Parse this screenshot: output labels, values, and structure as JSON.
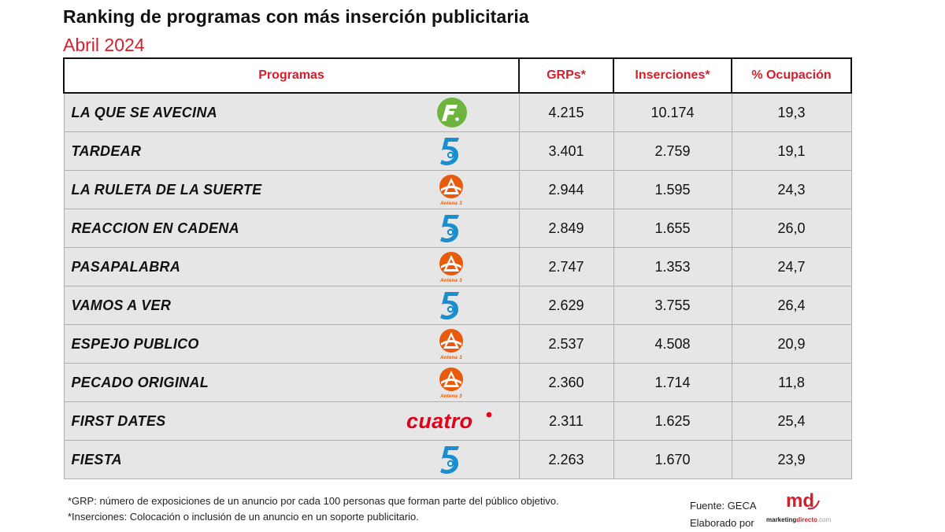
{
  "title": "Ranking de programas con más inserción publicitaria",
  "subtitle": "Abril 2024",
  "columns": [
    "Programas",
    "GRPs*",
    "Inserciones*",
    "% Ocupación"
  ],
  "rows": [
    {
      "program": "LA QUE SE AVECINA",
      "channel": "factoria-de-ficcion-logo",
      "grps": "4.215",
      "inserciones": "10.174",
      "ocupacion": "19,3"
    },
    {
      "program": "TARDEAR",
      "channel": "telecinco-logo",
      "grps": "3.401",
      "inserciones": "2.759",
      "ocupacion": "19,1"
    },
    {
      "program": "LA RULETA DE LA SUERTE",
      "channel": "antena3-logo",
      "grps": "2.944",
      "inserciones": "1.595",
      "ocupacion": "24,3"
    },
    {
      "program": "REACCION EN CADENA",
      "channel": "telecinco-logo",
      "grps": "2.849",
      "inserciones": "1.655",
      "ocupacion": "26,0"
    },
    {
      "program": "PASAPALABRA",
      "channel": "antena3-logo",
      "grps": "2.747",
      "inserciones": "1.353",
      "ocupacion": "24,7"
    },
    {
      "program": "VAMOS A VER",
      "channel": "telecinco-logo",
      "grps": "2.629",
      "inserciones": "3.755",
      "ocupacion": "26,4"
    },
    {
      "program": "ESPEJO PUBLICO",
      "channel": "antena3-logo",
      "grps": "2.537",
      "inserciones": "4.508",
      "ocupacion": "20,9"
    },
    {
      "program": "PECADO ORIGINAL",
      "channel": "antena3-logo",
      "grps": "2.360",
      "inserciones": "1.714",
      "ocupacion": "11,8"
    },
    {
      "program": "FIRST DATES",
      "channel": "cuatro-logo",
      "grps": "2.311",
      "inserciones": "1.625",
      "ocupacion": "25,4"
    },
    {
      "program": "FIESTA",
      "channel": "telecinco-logo",
      "grps": "2.263",
      "inserciones": "1.670",
      "ocupacion": "23,9"
    }
  ],
  "chart_data": {
    "type": "table",
    "title": "Ranking de programas con más inserción publicitaria",
    "subtitle": "Abril 2024",
    "columns": [
      "Programas",
      "GRPs*",
      "Inserciones*",
      "% Ocupación"
    ],
    "categories": [
      "LA QUE SE AVECINA",
      "TARDEAR",
      "LA RULETA DE LA SUERTE",
      "REACCION EN CADENA",
      "PASAPALABRA",
      "VAMOS A VER",
      "ESPEJO PUBLICO",
      "PECADO ORIGINAL",
      "FIRST DATES",
      "FIESTA"
    ],
    "series": [
      {
        "name": "GRPs*",
        "values": [
          4215,
          3401,
          2944,
          2849,
          2747,
          2629,
          2537,
          2360,
          2311,
          2263
        ]
      },
      {
        "name": "Inserciones*",
        "values": [
          10174,
          2759,
          1595,
          1655,
          1353,
          3755,
          4508,
          1714,
          1625,
          1670
        ]
      },
      {
        "name": "% Ocupación",
        "values": [
          19.3,
          19.1,
          24.3,
          26.0,
          24.7,
          26.4,
          20.9,
          11.8,
          25.4,
          23.9
        ]
      }
    ]
  },
  "logo_labels": {
    "antena3": "Antena 3",
    "cuatro": "cuatro"
  },
  "footnotes": [
    "*GRP: número de exposiciones de un anuncio por cada 100 personas que forman parte del público objetivo.",
    "*Inserciones: Colocación o inclusión de un anuncio en un soporte publicitario."
  ],
  "source": "Fuente: GECA",
  "credit": "Elaborado por",
  "brand": {
    "md": "md",
    "word_a": "marketing",
    "word_b": "directo",
    "word_c": ".com"
  },
  "colors": {
    "accent": "#d71e2a",
    "row_bg": "#e6e6e6",
    "fdf_green": "#6fb43f",
    "telecinco_blue": "#1a8fd0",
    "antena3_orange": "#e85a0c",
    "cuatro_red": "#e2001a"
  }
}
